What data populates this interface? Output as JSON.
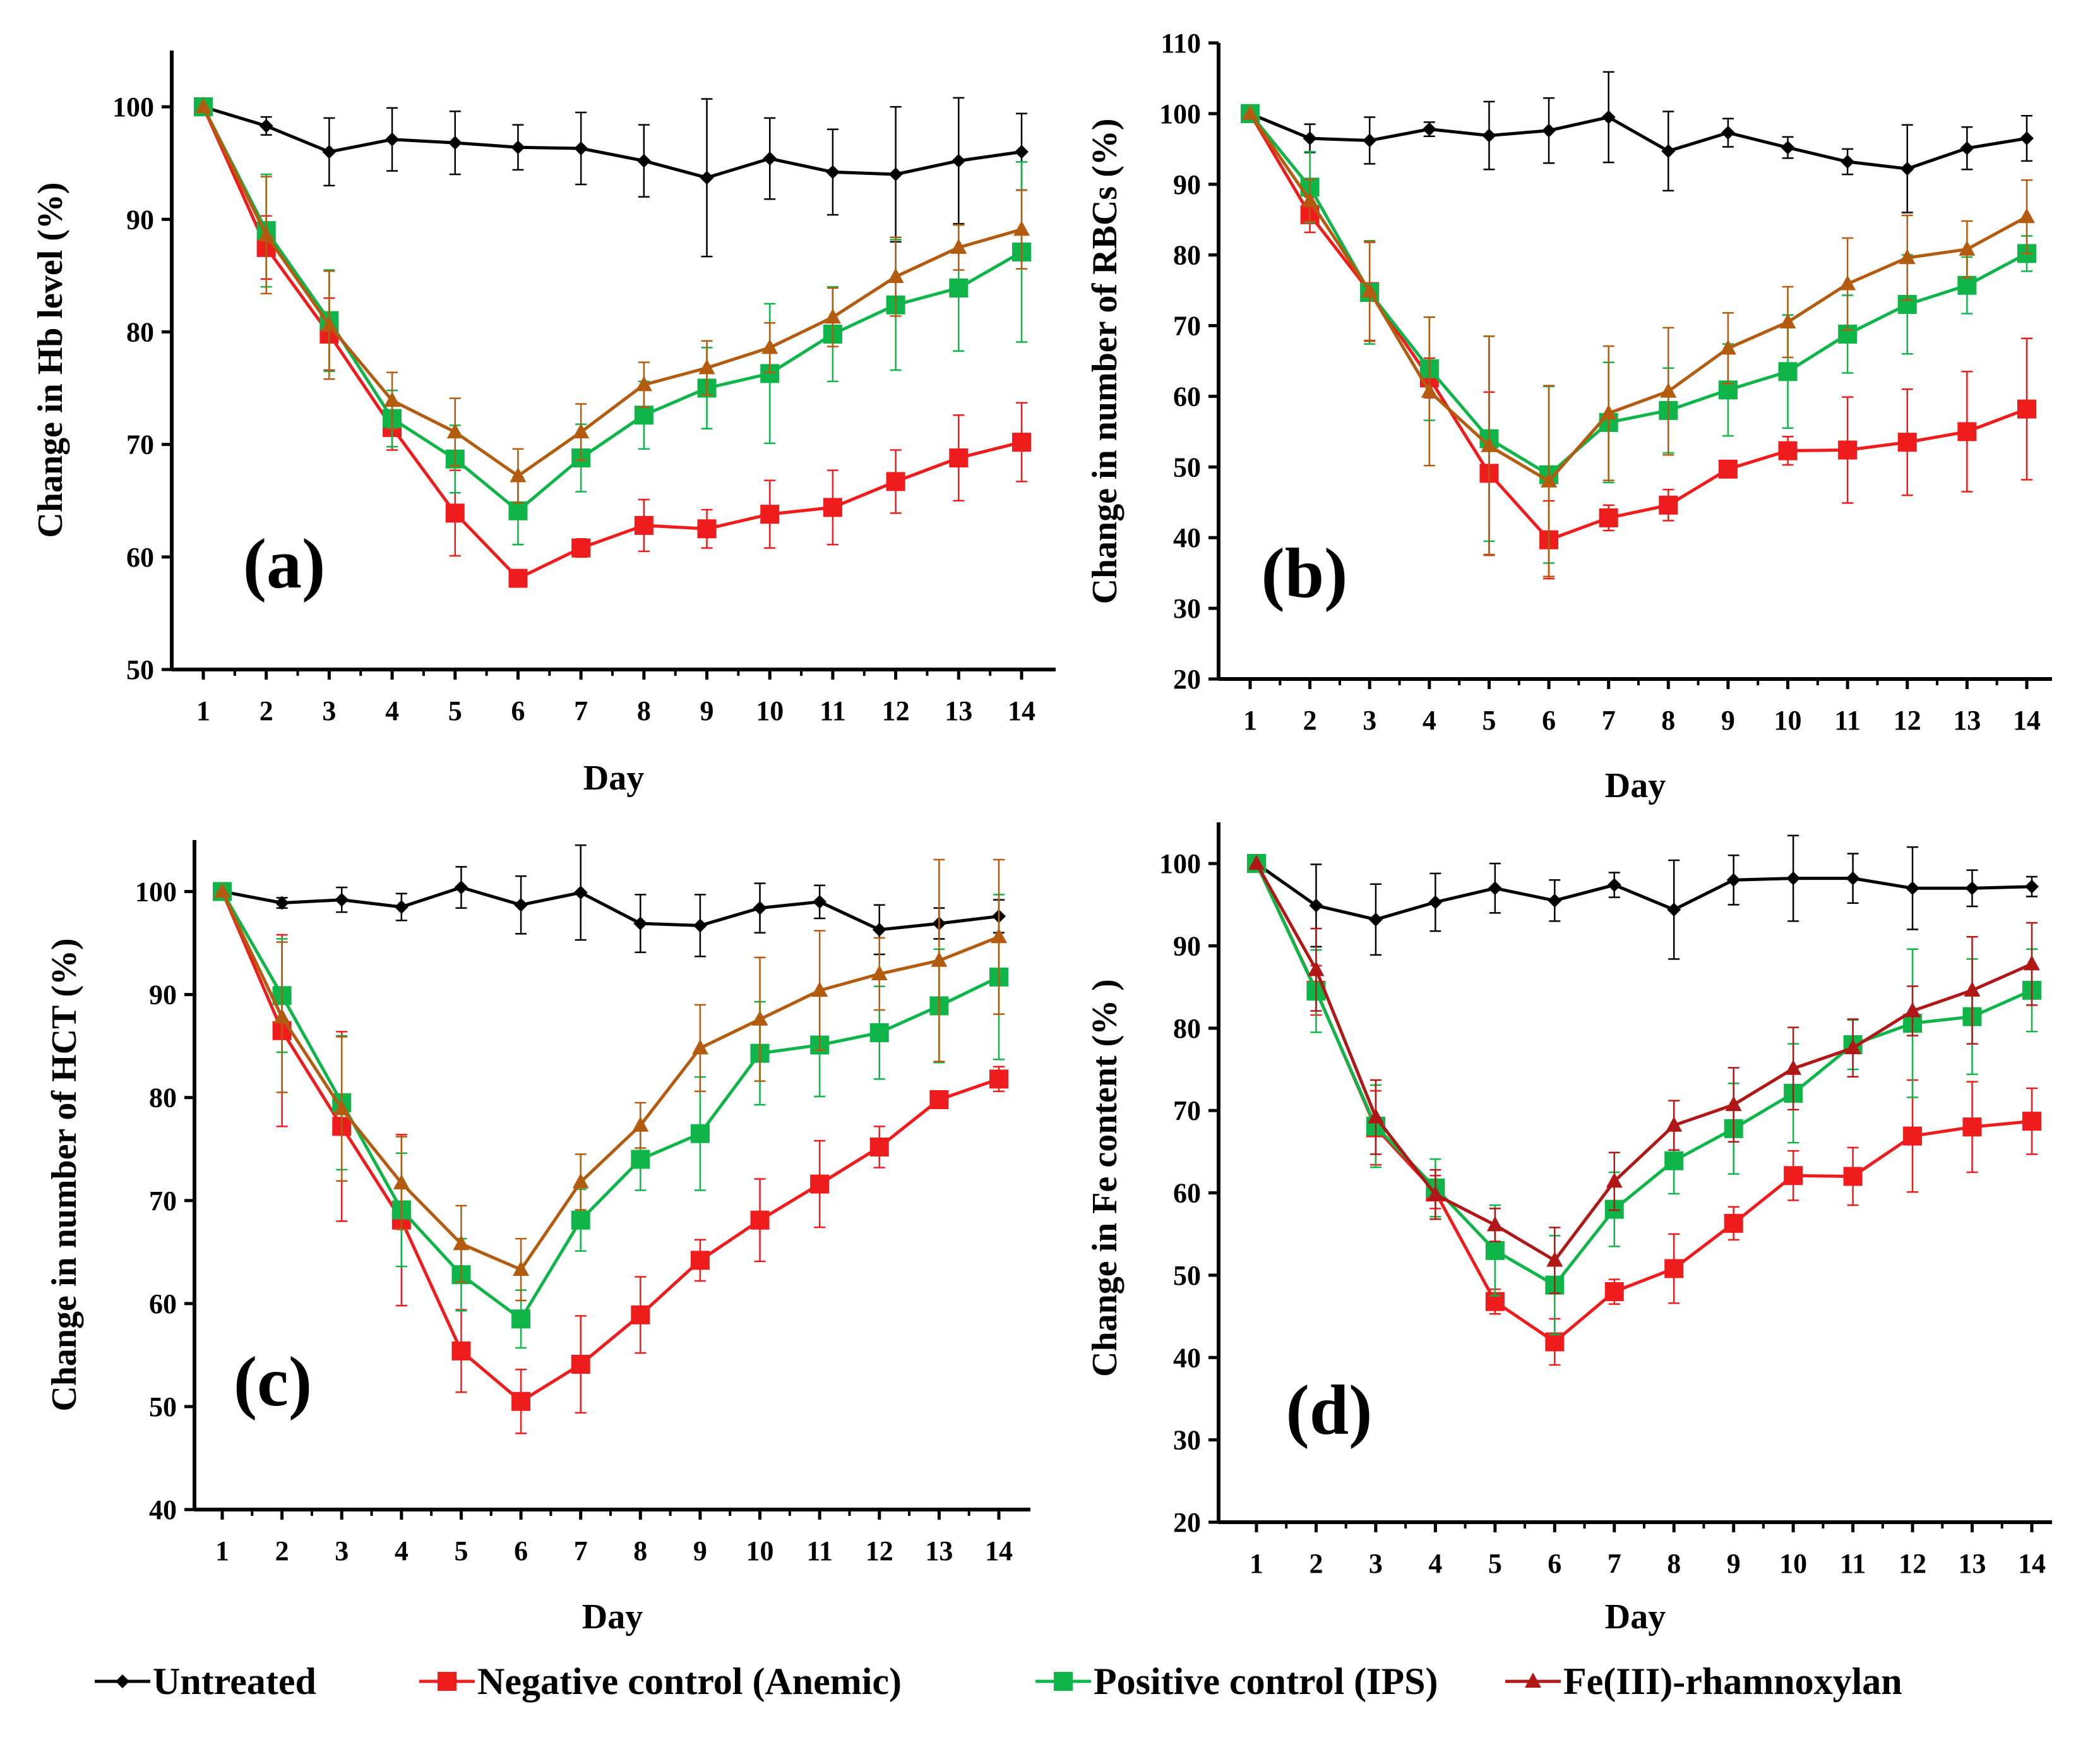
{
  "colors": {
    "untreated": "#000000",
    "negative": "#ee1c1c",
    "positive": "#10b54a",
    "fe_abc": "#b35c10",
    "fe_d": "#b01818"
  },
  "legend": {
    "items": [
      {
        "label": "Untreated",
        "series": "untreated",
        "marker": "diamond"
      },
      {
        "label": "Negative control (Anemic)",
        "series": "negative",
        "marker": "square"
      },
      {
        "label": "Positive control (IPS)",
        "series": "positive",
        "marker": "square"
      },
      {
        "label": "Fe(III)-rhamnoxylan",
        "series": "fe",
        "marker": "triangle"
      }
    ]
  },
  "chart_data": [
    {
      "type": "line",
      "panel_label": "(a)",
      "xlabel": "Day",
      "ylabel": "Change in Hb level (%)",
      "x": [
        1,
        2,
        3,
        4,
        5,
        6,
        7,
        8,
        9,
        10,
        11,
        12,
        13,
        14
      ],
      "ylim": [
        50,
        105
      ],
      "yticks": [
        50,
        60,
        70,
        80,
        90,
        100
      ],
      "series": [
        {
          "name": "Untreated",
          "key": "untreated",
          "marker": "diamond",
          "values": [
            100,
            98.3,
            96,
            97.1,
            96.8,
            96.4,
            96.3,
            95.2,
            93.7,
            95.4,
            94.2,
            94,
            95.2,
            96
          ],
          "errors": [
            0,
            0.8,
            3,
            2.8,
            2.8,
            2,
            3.2,
            3.2,
            7,
            3.6,
            3.8,
            6,
            5.6,
            3.4
          ]
        },
        {
          "name": "Negative control (Anemic)",
          "key": "negative",
          "marker": "square",
          "values": [
            100,
            87.5,
            79.8,
            71.5,
            63.9,
            58.1,
            60.8,
            62.8,
            62.5,
            63.8,
            64.4,
            66.7,
            68.8,
            70.2
          ],
          "errors": [
            0,
            2.8,
            3.2,
            2,
            3.8,
            0.6,
            0.8,
            2.3,
            1.7,
            3,
            3.3,
            2.8,
            3.8,
            3.5
          ]
        },
        {
          "name": "Positive control (IPS)",
          "key": "positive",
          "marker": "square",
          "values": [
            100,
            89,
            81,
            72.3,
            68.7,
            64.1,
            68.8,
            72.6,
            75,
            76.3,
            79.8,
            82.4,
            83.9,
            87.1
          ],
          "errors": [
            0,
            5,
            4.5,
            2.5,
            3,
            3,
            3,
            3,
            3.6,
            6.2,
            4.2,
            5.8,
            5.6,
            8
          ]
        },
        {
          "name": "Fe(III)-rhamnoxylan",
          "key": "fe_abc",
          "marker": "triangle",
          "values": [
            100,
            88.6,
            80.6,
            73.9,
            71.1,
            67.2,
            71.1,
            75.3,
            76.8,
            78.6,
            81.3,
            84.9,
            87.5,
            89.1
          ],
          "errors": [
            0,
            5.2,
            4.8,
            2.5,
            3,
            2.4,
            2.5,
            2,
            2.4,
            2.2,
            2.6,
            3.5,
            2,
            3.5
          ]
        }
      ]
    },
    {
      "type": "line",
      "panel_label": "(b)",
      "xlabel": "Day",
      "ylabel": "Change in number of RBCs (%)",
      "x": [
        1,
        2,
        3,
        4,
        5,
        6,
        7,
        8,
        9,
        10,
        11,
        12,
        13,
        14
      ],
      "ylim": [
        20,
        110
      ],
      "yticks": [
        20,
        30,
        40,
        50,
        60,
        70,
        80,
        90,
        100,
        110
      ],
      "series": [
        {
          "name": "Untreated",
          "key": "untreated",
          "marker": "diamond",
          "values": [
            100,
            96.5,
            96.2,
            97.8,
            96.9,
            97.6,
            99.5,
            94.7,
            97.3,
            95.2,
            93.2,
            92.2,
            95.1,
            96.5
          ],
          "errors": [
            0,
            2,
            3.3,
            1,
            4.8,
            4.6,
            6.4,
            5.6,
            2,
            1.5,
            1.8,
            6.2,
            3,
            3.2
          ]
        },
        {
          "name": "Negative control (Anemic)",
          "key": "negative",
          "marker": "square",
          "values": [
            100,
            85.7,
            74.8,
            62.6,
            49.1,
            39.7,
            42.8,
            44.6,
            49.7,
            52.3,
            52.4,
            53.5,
            55,
            58.2
          ],
          "errors": [
            0,
            2.5,
            7,
            2.8,
            11.5,
            5.5,
            1.8,
            2.2,
            1,
            2,
            7.5,
            7.5,
            8.5,
            10
          ]
        },
        {
          "name": "Positive control (IPS)",
          "key": "positive",
          "marker": "square",
          "values": [
            100,
            89.6,
            74.7,
            63.9,
            54,
            48.9,
            56.3,
            58,
            60.9,
            63.5,
            68.8,
            73,
            75.7,
            80.2
          ],
          "errors": [
            0,
            5,
            7.3,
            7.3,
            14.5,
            12.5,
            8.5,
            6,
            6.5,
            8,
            5.5,
            7,
            4,
            2.5
          ]
        },
        {
          "name": "Fe(III)-rhamnoxylan",
          "key": "fe_abc",
          "marker": "triangle",
          "values": [
            100,
            87.7,
            74.9,
            60.7,
            53,
            48,
            57.6,
            60.7,
            66.8,
            70.5,
            75.9,
            79.6,
            80.8,
            85.4
          ],
          "errors": [
            0,
            3,
            7,
            10.5,
            15.5,
            13.5,
            9.5,
            9,
            5,
            5,
            6.5,
            6,
            4,
            5.2
          ]
        }
      ]
    },
    {
      "type": "line",
      "panel_label": "(c)",
      "xlabel": "Day",
      "ylabel": "Change in number of HCT (%)",
      "x": [
        1,
        2,
        3,
        4,
        5,
        6,
        7,
        8,
        9,
        10,
        11,
        12,
        13,
        14
      ],
      "ylim": [
        40,
        105
      ],
      "yticks": [
        40,
        50,
        60,
        70,
        80,
        90,
        100
      ],
      "series": [
        {
          "name": "Untreated",
          "key": "untreated",
          "marker": "diamond",
          "values": [
            100,
            98.9,
            99.2,
            98.5,
            100.4,
            98.7,
            99.9,
            96.9,
            96.7,
            98.4,
            99,
            96.3,
            96.9,
            97.6
          ],
          "errors": [
            0,
            0.5,
            1.2,
            1.3,
            2,
            2.8,
            4.6,
            2.8,
            3,
            2.4,
            1.6,
            2.4,
            1.5,
            1.6
          ]
        },
        {
          "name": "Negative control (Anemic)",
          "key": "negative",
          "marker": "square",
          "values": [
            100,
            86.5,
            77.2,
            68.1,
            55.4,
            50.5,
            54.1,
            58.9,
            64.2,
            68.1,
            71.6,
            75.2,
            79.8,
            81.8
          ],
          "errors": [
            0,
            9.3,
            9.2,
            8.3,
            4,
            3.1,
            4.7,
            3.7,
            2,
            4,
            4.2,
            2,
            0.5,
            1.2
          ]
        },
        {
          "name": "Positive control (IPS)",
          "key": "positive",
          "marker": "square",
          "values": [
            100,
            89.9,
            79.5,
            69.1,
            62.8,
            58.5,
            68.1,
            74,
            76.5,
            84.3,
            85.1,
            86.3,
            88.9,
            91.7
          ],
          "errors": [
            0,
            5.5,
            6.5,
            5.5,
            3.5,
            2.8,
            3,
            3,
            5.5,
            5,
            5,
            4.5,
            5.5,
            8
          ]
        },
        {
          "name": "Fe(III)-rhamnoxylan",
          "key": "fe_abc",
          "marker": "triangle",
          "values": [
            100,
            87.8,
            78.9,
            71.7,
            65.8,
            63.3,
            71.8,
            77.3,
            84.8,
            87.6,
            90.4,
            92,
            93.3,
            95.6
          ],
          "errors": [
            0,
            7.3,
            7,
            4.5,
            3.7,
            3,
            2.7,
            2.2,
            4.2,
            6,
            5.8,
            3.5,
            9.8,
            7.5
          ]
        }
      ]
    },
    {
      "type": "line",
      "panel_label": "(d)",
      "xlabel": "Day",
      "ylabel": "Change in Fe content (% )",
      "x": [
        1,
        2,
        3,
        4,
        5,
        6,
        7,
        8,
        9,
        10,
        11,
        12,
        13,
        14
      ],
      "ylim": [
        20,
        105
      ],
      "yticks": [
        20,
        30,
        40,
        50,
        60,
        70,
        80,
        90,
        100
      ],
      "series": [
        {
          "name": "Untreated",
          "key": "untreated",
          "marker": "diamond",
          "values": [
            100,
            94.9,
            93.2,
            95.3,
            97,
            95.5,
            97.4,
            94.4,
            98,
            98.2,
            98.2,
            97,
            97,
            97.2
          ],
          "errors": [
            0,
            5,
            4.3,
            3.5,
            3,
            2.5,
            1.5,
            6,
            3,
            5.2,
            3,
            5,
            2.2,
            1.2
          ]
        },
        {
          "name": "Negative control (Anemic)",
          "key": "negative",
          "marker": "square",
          "values": [
            100,
            84.6,
            67.9,
            60.1,
            46.8,
            41.9,
            48,
            50.8,
            56.3,
            62.1,
            62,
            66.9,
            68,
            68.7
          ],
          "errors": [
            0,
            3,
            4.5,
            2,
            1.5,
            2.8,
            1.5,
            4.2,
            2,
            3,
            3.5,
            6.8,
            5.5,
            4
          ]
        },
        {
          "name": "Positive control (IPS)",
          "key": "positive",
          "marker": "square",
          "values": [
            100,
            84.5,
            68.1,
            60.6,
            53,
            48.8,
            58,
            63.9,
            67.8,
            72.1,
            78,
            80.6,
            81.4,
            84.6
          ],
          "errors": [
            0,
            5,
            5,
            3.5,
            5.5,
            6,
            4.5,
            4,
            5.5,
            6,
            3,
            9,
            7,
            5
          ]
        },
        {
          "name": "Fe(III)-rhamnoxylan",
          "key": "fe_d",
          "marker": "triangle",
          "values": [
            100,
            87.1,
            69.2,
            59.8,
            56.1,
            51.8,
            61.4,
            68.2,
            70.7,
            75.1,
            77.6,
            82.1,
            84.6,
            87.8
          ],
          "errors": [
            0,
            5,
            4.5,
            3,
            2,
            4,
            3.5,
            3,
            4.5,
            5,
            3.5,
            3,
            6.5,
            5
          ]
        }
      ]
    }
  ]
}
